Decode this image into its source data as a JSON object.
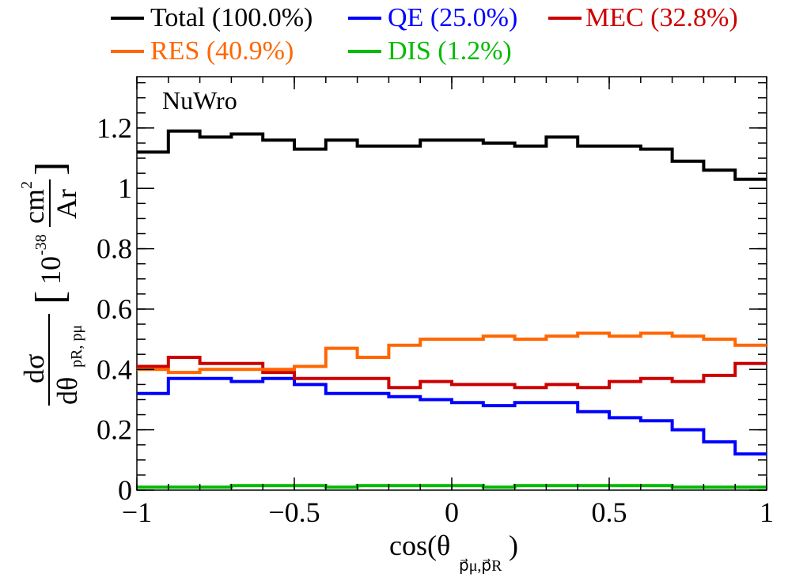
{
  "chart_data": {
    "type": "line",
    "annotation": "NuWro",
    "xlabel": "cos(θ",
    "xlabel_sub": "p⃗μ,p⃗R",
    "ylabel": {
      "numerator": "dσ",
      "denominator": "dθ",
      "denominator_sub": "pR, pμ",
      "units_prefix": "10",
      "units_exp": "-38",
      "units_num": "cm",
      "units_num_exp": "2",
      "units_den": "Ar"
    },
    "xlim": [
      -1,
      1
    ],
    "ylim": [
      0,
      1.37
    ],
    "x_ticks": [
      -1,
      -0.5,
      0,
      0.5,
      1
    ],
    "x_tick_labels": [
      "−1",
      "−0.5",
      "0",
      "0.5",
      "1"
    ],
    "y_ticks": [
      0,
      0.2,
      0.4,
      0.6,
      0.8,
      1,
      1.2
    ],
    "y_tick_labels": [
      "0",
      "0.2",
      "0.4",
      "0.6",
      "0.8",
      "1",
      "1.2"
    ],
    "bin_edges": [
      -1,
      -0.9,
      -0.8,
      -0.7,
      -0.6,
      -0.5,
      -0.4,
      -0.3,
      -0.2,
      -0.1,
      0,
      0.1,
      0.2,
      0.3,
      0.4,
      0.5,
      0.6,
      0.7,
      0.8,
      0.9,
      1
    ],
    "series": [
      {
        "name": "Total (100.0%)",
        "color": "#000000",
        "values": [
          1.12,
          1.19,
          1.17,
          1.18,
          1.16,
          1.13,
          1.16,
          1.14,
          1.14,
          1.16,
          1.16,
          1.15,
          1.14,
          1.17,
          1.14,
          1.14,
          1.13,
          1.09,
          1.06,
          1.03
        ]
      },
      {
        "name": "QE (25.0%)",
        "color": "#0000ff",
        "values": [
          0.32,
          0.37,
          0.37,
          0.36,
          0.37,
          0.35,
          0.32,
          0.32,
          0.31,
          0.3,
          0.29,
          0.28,
          0.29,
          0.29,
          0.26,
          0.24,
          0.23,
          0.2,
          0.16,
          0.12
        ]
      },
      {
        "name": "MEC (32.8%)",
        "color": "#cc0000",
        "values": [
          0.41,
          0.44,
          0.42,
          0.42,
          0.39,
          0.37,
          0.37,
          0.37,
          0.34,
          0.36,
          0.35,
          0.35,
          0.34,
          0.35,
          0.34,
          0.36,
          0.37,
          0.36,
          0.38,
          0.42
        ]
      },
      {
        "name": "RES (40.9%)",
        "color": "#ff6600",
        "values": [
          0.4,
          0.39,
          0.4,
          0.4,
          0.4,
          0.41,
          0.47,
          0.44,
          0.48,
          0.5,
          0.5,
          0.51,
          0.5,
          0.51,
          0.52,
          0.51,
          0.52,
          0.51,
          0.5,
          0.48
        ]
      },
      {
        "name": "DIS (1.2%)",
        "color": "#00bb00",
        "values": [
          0.01,
          0.01,
          0.01,
          0.015,
          0.015,
          0.015,
          0.01,
          0.015,
          0.015,
          0.015,
          0.015,
          0.01,
          0.015,
          0.015,
          0.015,
          0.015,
          0.015,
          0.01,
          0.01,
          0.01
        ]
      }
    ],
    "legend_position": "top"
  }
}
